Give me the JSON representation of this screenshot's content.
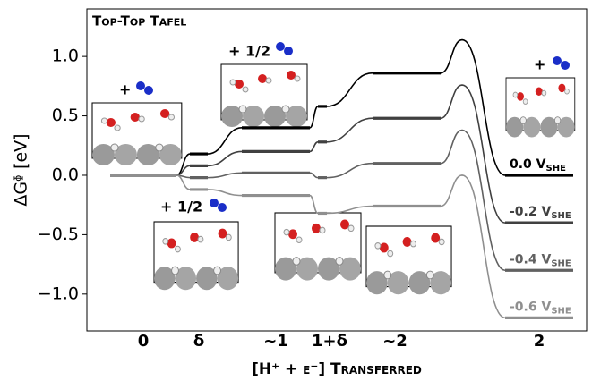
{
  "chart_data": {
    "type": "energy_diagram",
    "title": "Top-Top Tafel",
    "x_label": "[H⁺ + e⁻] Transferred",
    "y_label": "ΔGᶲ [eV]",
    "potential_subscript": "SHE",
    "categories": [
      "0",
      "δ",
      "~1",
      "1+δ",
      "~2",
      null,
      "2"
    ],
    "series": [
      {
        "name": "0.0 V",
        "color": "#000000",
        "values": [
          0,
          0.18,
          0.4,
          0.58,
          0.86,
          1.14,
          0.0
        ]
      },
      {
        "name": "-0.2 V",
        "color": "#404040",
        "values": [
          0,
          0.08,
          0.2,
          0.28,
          0.48,
          0.76,
          -0.4
        ]
      },
      {
        "name": "-0.4 V",
        "color": "#616161",
        "values": [
          0,
          -0.02,
          0.02,
          -0.02,
          0.1,
          0.38,
          -0.8
        ]
      },
      {
        "name": "-0.6 V",
        "color": "#8f8f8f",
        "values": [
          0,
          -0.12,
          -0.17,
          -0.32,
          -0.26,
          0.0,
          -1.2
        ]
      }
    ],
    "annotations": [
      "+",
      "+ 1/2",
      "+ 1/2",
      "+"
    ],
    "ylim": [
      -1.31,
      1.4
    ],
    "yticks": [
      {
        "value": -1.0,
        "label": "−1.0"
      },
      {
        "value": -0.5,
        "label": "−0.5"
      },
      {
        "value": 0.0,
        "label": "0.0"
      },
      {
        "value": 0.5,
        "label": "0.5"
      },
      {
        "value": 1.0,
        "label": "1.0"
      }
    ]
  }
}
